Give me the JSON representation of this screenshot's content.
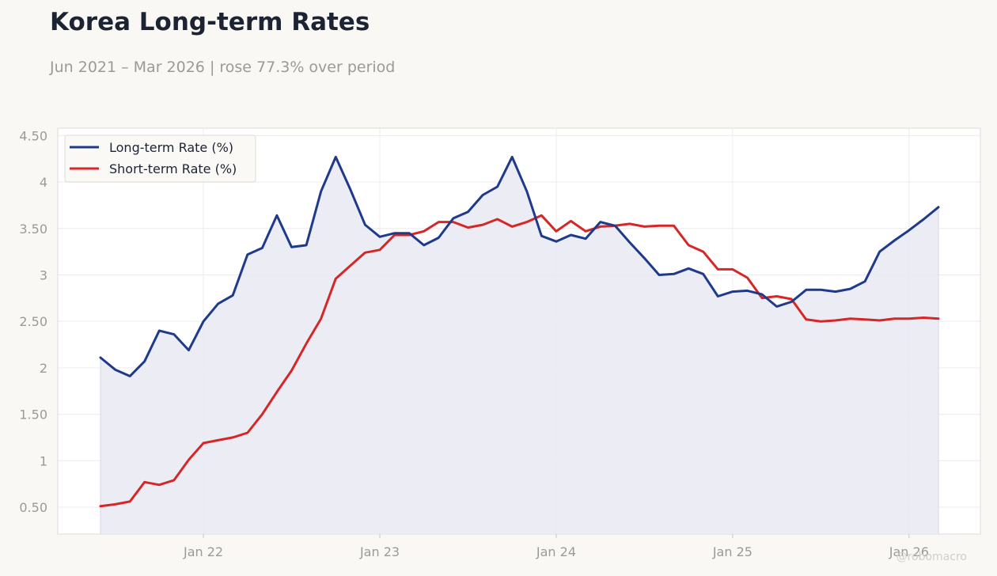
{
  "header": {
    "title": "Korea Long-term Rates",
    "subtitle": "Jun 2021 – Mar 2026 | rose 77.3% over period"
  },
  "credit": "@robomacro",
  "colors": {
    "long": "#1f3a8a",
    "short": "#d62728",
    "fill": "#e9eaf2",
    "grid": "#ececec",
    "background": "#f9f8f5"
  },
  "chart_data": {
    "type": "line",
    "title": "Korea Long-term Rates",
    "subtitle": "Jun 2021 – Mar 2026 | rose 77.3% over period",
    "xlabel": "",
    "ylabel": "",
    "x": [
      "2021-06",
      "2021-07",
      "2021-08",
      "2021-09",
      "2021-10",
      "2021-11",
      "2021-12",
      "2022-01",
      "2022-02",
      "2022-03",
      "2022-04",
      "2022-05",
      "2022-06",
      "2022-07",
      "2022-08",
      "2022-09",
      "2022-10",
      "2022-11",
      "2022-12",
      "2023-01",
      "2023-02",
      "2023-03",
      "2023-04",
      "2023-05",
      "2023-06",
      "2023-07",
      "2023-08",
      "2023-09",
      "2023-10",
      "2023-11",
      "2023-12",
      "2024-01",
      "2024-02",
      "2024-03",
      "2024-04",
      "2024-05",
      "2024-06",
      "2024-07",
      "2024-08",
      "2024-09",
      "2024-10",
      "2024-11",
      "2024-12",
      "2025-01",
      "2025-02",
      "2025-03",
      "2025-04",
      "2025-05",
      "2025-06",
      "2025-07",
      "2025-08",
      "2025-09",
      "2025-10",
      "2025-11",
      "2025-12",
      "2026-01",
      "2026-02",
      "2026-03"
    ],
    "series": [
      {
        "name": "Long-term Rate (%)",
        "values": [
          2.11,
          1.98,
          1.91,
          2.07,
          2.4,
          2.36,
          2.19,
          2.5,
          2.69,
          2.78,
          3.22,
          3.29,
          3.64,
          3.3,
          3.32,
          3.9,
          4.27,
          3.92,
          3.54,
          3.41,
          3.45,
          3.45,
          3.32,
          3.4,
          3.61,
          3.68,
          3.86,
          3.95,
          4.27,
          3.9,
          3.42,
          3.36,
          3.43,
          3.39,
          3.57,
          3.53,
          3.35,
          3.18,
          3.0,
          3.01,
          3.07,
          3.01,
          2.77,
          2.82,
          2.83,
          2.79,
          2.66,
          2.71,
          2.84,
          2.84,
          2.82,
          2.85,
          2.93,
          3.25,
          3.37,
          3.48,
          3.6,
          3.73
        ]
      },
      {
        "name": "Short-term Rate (%)",
        "values": [
          0.51,
          0.53,
          0.56,
          0.77,
          0.74,
          0.79,
          1.01,
          1.19,
          1.22,
          1.25,
          1.3,
          1.5,
          1.74,
          1.97,
          2.26,
          2.53,
          2.96,
          3.1,
          3.24,
          3.27,
          3.43,
          3.43,
          3.47,
          3.57,
          3.57,
          3.51,
          3.54,
          3.6,
          3.52,
          3.57,
          3.64,
          3.47,
          3.58,
          3.47,
          3.52,
          3.53,
          3.55,
          3.52,
          3.53,
          3.53,
          3.32,
          3.25,
          3.06,
          3.06,
          2.97,
          2.75,
          2.77,
          2.74,
          2.52,
          2.5,
          2.51,
          2.53,
          2.52,
          2.51,
          2.53,
          2.53,
          2.54,
          2.53
        ]
      }
    ],
    "ylim": [
      0.21,
      4.58
    ],
    "yticks": [
      "0.50",
      "1",
      "1.50",
      "2",
      "2.50",
      "3",
      "3.50",
      "4",
      "4.50"
    ],
    "xticks": [
      {
        "label": "Jan 22",
        "date": "2022-01"
      },
      {
        "label": "Jan 23",
        "date": "2023-01"
      },
      {
        "label": "Jan 24",
        "date": "2024-01"
      },
      {
        "label": "Jan 25",
        "date": "2025-01"
      },
      {
        "label": "Jan 26",
        "date": "2026-01"
      }
    ],
    "grid": true,
    "legend": "top-left"
  }
}
